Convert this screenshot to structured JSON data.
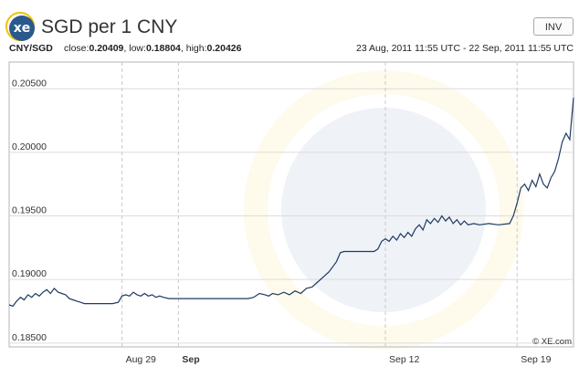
{
  "header": {
    "logo_text": "xe",
    "title": "SGD per 1 CNY",
    "invert_label": "INV"
  },
  "info": {
    "pair": "CNY/SGD",
    "close_label": "close:",
    "close": "0.20409",
    "low_label": "low:",
    "low": "0.18804",
    "high_label": "high:",
    "high": "0.20426",
    "date_range": "23 Aug, 2011 11:55 UTC - 22 Sep, 2011 11:55 UTC"
  },
  "copyright": "© XE.com",
  "colors": {
    "line": "#1f3a63",
    "grid": "#dcdcdc",
    "accent_logo": "#2a5a8c"
  },
  "chart_data": {
    "type": "line",
    "title": "SGD per 1 CNY",
    "xlabel": "",
    "ylabel": "",
    "ylim": [
      0.1847,
      0.2071
    ],
    "xlim": [
      0,
      30
    ],
    "x_ticks": [
      {
        "label": "Aug 29",
        "x": 6,
        "bold": false
      },
      {
        "label": "Sep",
        "x": 9,
        "bold": true
      },
      {
        "label": "Sep 12",
        "x": 20,
        "bold": false
      },
      {
        "label": "Sep 19",
        "x": 27,
        "bold": false
      }
    ],
    "y_ticks": [
      "0.18500",
      "0.19000",
      "0.19500",
      "0.20000",
      "0.20500"
    ],
    "grid": true,
    "series": [
      {
        "values": [
          [
            0.0,
            0.188
          ],
          [
            0.2,
            0.1879
          ],
          [
            0.4,
            0.1883
          ],
          [
            0.6,
            0.1886
          ],
          [
            0.8,
            0.1884
          ],
          [
            1.0,
            0.1888
          ],
          [
            1.2,
            0.1886
          ],
          [
            1.4,
            0.1889
          ],
          [
            1.6,
            0.1887
          ],
          [
            1.8,
            0.189
          ],
          [
            2.0,
            0.1892
          ],
          [
            2.2,
            0.1889
          ],
          [
            2.4,
            0.1893
          ],
          [
            2.6,
            0.189
          ],
          [
            2.8,
            0.1889
          ],
          [
            3.0,
            0.1888
          ],
          [
            3.2,
            0.1885
          ],
          [
            3.4,
            0.1884
          ],
          [
            3.6,
            0.1883
          ],
          [
            3.8,
            0.1882
          ],
          [
            4.0,
            0.1881
          ],
          [
            5.0,
            0.1881
          ],
          [
            5.5,
            0.1881
          ],
          [
            5.8,
            0.1882
          ],
          [
            6.0,
            0.1887
          ],
          [
            6.2,
            0.1888
          ],
          [
            6.4,
            0.1887
          ],
          [
            6.6,
            0.189
          ],
          [
            6.8,
            0.1888
          ],
          [
            7.0,
            0.1887
          ],
          [
            7.2,
            0.1889
          ],
          [
            7.4,
            0.1887
          ],
          [
            7.6,
            0.1888
          ],
          [
            7.8,
            0.1886
          ],
          [
            8.0,
            0.1887
          ],
          [
            8.2,
            0.1886
          ],
          [
            8.5,
            0.1885
          ],
          [
            9.0,
            0.1885
          ],
          [
            10.0,
            0.1885
          ],
          [
            11.0,
            0.1885
          ],
          [
            12.0,
            0.1885
          ],
          [
            12.7,
            0.1885
          ],
          [
            13.0,
            0.1886
          ],
          [
            13.3,
            0.1889
          ],
          [
            13.6,
            0.1888
          ],
          [
            13.8,
            0.1887
          ],
          [
            14.0,
            0.1889
          ],
          [
            14.3,
            0.1888
          ],
          [
            14.6,
            0.189
          ],
          [
            14.9,
            0.1888
          ],
          [
            15.2,
            0.1891
          ],
          [
            15.5,
            0.1889
          ],
          [
            15.8,
            0.1893
          ],
          [
            16.1,
            0.1894
          ],
          [
            16.4,
            0.1898
          ],
          [
            16.7,
            0.1902
          ],
          [
            17.0,
            0.1906
          ],
          [
            17.2,
            0.191
          ],
          [
            17.4,
            0.1914
          ],
          [
            17.6,
            0.1921
          ],
          [
            17.8,
            0.1922
          ],
          [
            18.2,
            0.1922
          ],
          [
            18.6,
            0.1922
          ],
          [
            19.0,
            0.1922
          ],
          [
            19.4,
            0.1922
          ],
          [
            19.6,
            0.1924
          ],
          [
            19.8,
            0.193
          ],
          [
            20.0,
            0.1932
          ],
          [
            20.2,
            0.193
          ],
          [
            20.4,
            0.1934
          ],
          [
            20.6,
            0.1931
          ],
          [
            20.8,
            0.1936
          ],
          [
            21.0,
            0.1933
          ],
          [
            21.2,
            0.1937
          ],
          [
            21.4,
            0.1934
          ],
          [
            21.6,
            0.194
          ],
          [
            21.8,
            0.1943
          ],
          [
            22.0,
            0.1939
          ],
          [
            22.2,
            0.1947
          ],
          [
            22.4,
            0.1944
          ],
          [
            22.6,
            0.1948
          ],
          [
            22.8,
            0.1945
          ],
          [
            23.0,
            0.195
          ],
          [
            23.2,
            0.1946
          ],
          [
            23.4,
            0.1949
          ],
          [
            23.6,
            0.1944
          ],
          [
            23.8,
            0.1947
          ],
          [
            24.0,
            0.1943
          ],
          [
            24.2,
            0.1946
          ],
          [
            24.4,
            0.1943
          ],
          [
            24.7,
            0.1944
          ],
          [
            25.0,
            0.1943
          ],
          [
            25.5,
            0.1944
          ],
          [
            26.0,
            0.1943
          ],
          [
            26.6,
            0.1944
          ],
          [
            26.8,
            0.195
          ],
          [
            27.0,
            0.196
          ],
          [
            27.2,
            0.1972
          ],
          [
            27.4,
            0.1975
          ],
          [
            27.6,
            0.197
          ],
          [
            27.8,
            0.1978
          ],
          [
            28.0,
            0.1973
          ],
          [
            28.2,
            0.1983
          ],
          [
            28.4,
            0.1975
          ],
          [
            28.6,
            0.1972
          ],
          [
            28.8,
            0.198
          ],
          [
            29.0,
            0.1985
          ],
          [
            29.2,
            0.1995
          ],
          [
            29.4,
            0.2008
          ],
          [
            29.6,
            0.2015
          ],
          [
            29.8,
            0.201
          ],
          [
            30.0,
            0.2043
          ]
        ]
      }
    ]
  }
}
